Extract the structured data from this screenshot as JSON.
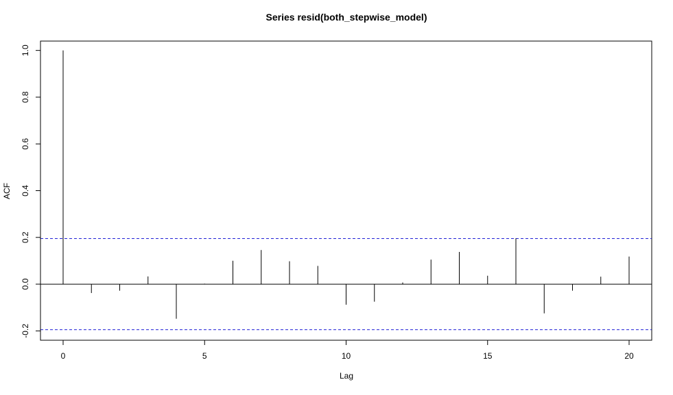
{
  "chart_data": {
    "type": "bar",
    "title": "Series  resid(both_stepwise_model)",
    "xlabel": "Lag",
    "ylabel": "ACF",
    "xlim": [
      -0.8,
      20.8
    ],
    "ylim": [
      -0.24,
      1.04
    ],
    "xticks": [
      0,
      5,
      10,
      15,
      20
    ],
    "yticks": [
      -0.2,
      0.0,
      0.2,
      0.4,
      0.6,
      0.8,
      1.0
    ],
    "ytick_labels": [
      "-0.2",
      "0.0",
      "0.2",
      "0.4",
      "0.6",
      "0.8",
      "1.0"
    ],
    "lags": [
      0,
      1,
      2,
      3,
      4,
      5,
      6,
      7,
      8,
      9,
      10,
      11,
      12,
      13,
      14,
      15,
      16,
      17,
      18,
      19,
      20
    ],
    "acf": [
      1.0,
      -0.038,
      -0.028,
      0.033,
      -0.148,
      0.002,
      0.1,
      0.146,
      0.098,
      0.078,
      -0.088,
      -0.075,
      0.007,
      0.105,
      0.138,
      0.036,
      0.196,
      -0.125,
      -0.028,
      0.032,
      0.118
    ],
    "confidence_band": 0.195,
    "colors": {
      "axis": "#000000",
      "spike": "#000000",
      "band": "#1f1fd6"
    }
  }
}
